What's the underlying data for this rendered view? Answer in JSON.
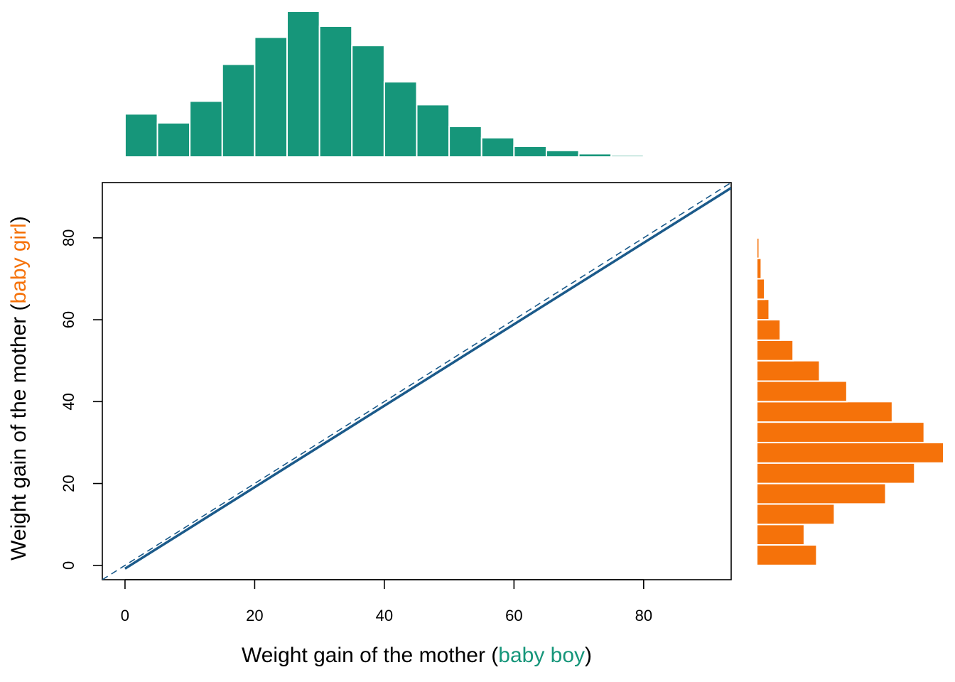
{
  "colors": {
    "boy": "#16967a",
    "girl": "#f5720a",
    "line": "#1b5a8a",
    "axis": "#000000",
    "bar_edge": "#ffffff"
  },
  "chart_data": {
    "type": "scatter",
    "subtype": "qq-plot-with-marginal-histograms",
    "x_axis": {
      "label_parts": [
        "Weight gain of the mother (",
        "baby boy",
        ")"
      ],
      "ticks": [
        0,
        20,
        40,
        60,
        80
      ],
      "range": [
        -3.5,
        93.5
      ]
    },
    "y_axis": {
      "label_parts": [
        "Weight gain of the mother (",
        "baby girl",
        ")"
      ],
      "ticks": [
        0,
        20,
        40,
        60,
        80
      ],
      "range": [
        -3.5,
        93.5
      ]
    },
    "reference_line": {
      "style": "dashed",
      "slope": 1,
      "intercept": 0
    },
    "qq_line": {
      "style": "solid",
      "points": [
        [
          0,
          -0.8
        ],
        [
          93.5,
          92.2
        ]
      ]
    },
    "hist_boy": {
      "bin_width": 5,
      "bins_start": [
        0,
        5,
        10,
        15,
        20,
        25,
        30,
        35,
        40,
        45,
        50,
        55,
        60,
        65,
        70,
        75,
        80
      ],
      "density": [
        0.0145,
        0.0115,
        0.0188,
        0.0312,
        0.0403,
        0.049,
        0.044,
        0.0375,
        0.0253,
        0.0176,
        0.0103,
        0.0065,
        0.0036,
        0.0022,
        0.0011,
        0.0006,
        0.0003
      ]
    },
    "hist_girl": {
      "bin_width": 5,
      "bins_start": [
        0,
        5,
        10,
        15,
        20,
        25,
        30,
        35,
        40,
        45,
        50,
        55,
        60,
        65,
        70,
        75,
        80,
        85
      ],
      "density": [
        0.0145,
        0.0115,
        0.0188,
        0.0312,
        0.0382,
        0.0452,
        0.0405,
        0.0328,
        0.0218,
        0.0152,
        0.0088,
        0.0057,
        0.003,
        0.0019,
        0.0011,
        0.0006,
        0.0003,
        0.0001
      ]
    }
  }
}
